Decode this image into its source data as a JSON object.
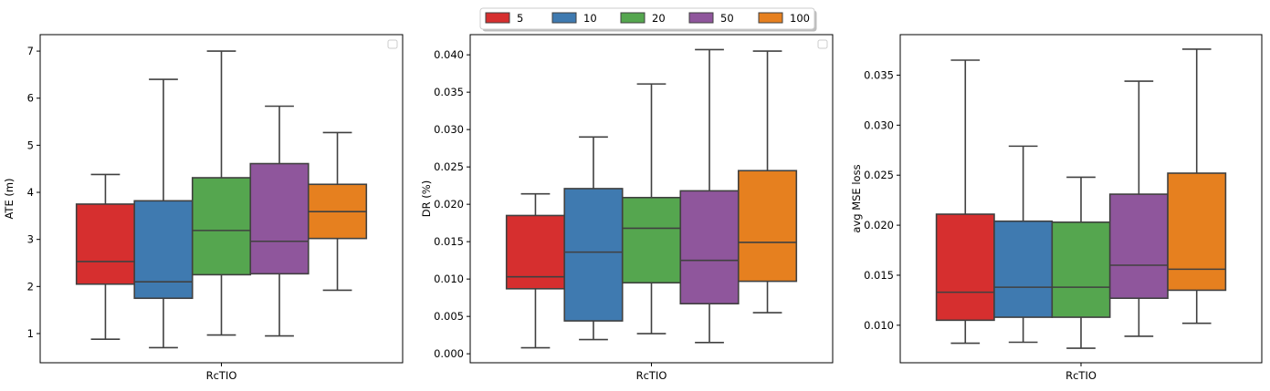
{
  "legend": {
    "entries": [
      {
        "label": "5",
        "color": "#d62f2f"
      },
      {
        "label": "10",
        "color": "#3f7ab0"
      },
      {
        "label": "20",
        "color": "#55a64f"
      },
      {
        "label": "50",
        "color": "#8f569c"
      },
      {
        "label": "100",
        "color": "#e6801f"
      }
    ]
  },
  "chart_data": [
    {
      "type": "box",
      "xlabel": "RcTIO",
      "ylabel": "ATE (m)",
      "ylim": [
        0.38,
        7.35
      ],
      "yticks": [
        1,
        2,
        3,
        4,
        5,
        6,
        7
      ],
      "ytick_labels": [
        "1",
        "2",
        "3",
        "4",
        "5",
        "6",
        "7"
      ],
      "categories": [
        "RcTIO"
      ],
      "series": [
        {
          "name": "5",
          "min": 0.88,
          "q1": 2.05,
          "median": 2.53,
          "q3": 3.75,
          "max": 4.38
        },
        {
          "name": "10",
          "min": 0.7,
          "q1": 1.75,
          "median": 2.1,
          "q3": 3.82,
          "max": 6.4
        },
        {
          "name": "20",
          "min": 0.97,
          "q1": 2.25,
          "median": 3.19,
          "q3": 4.31,
          "max": 7.0
        },
        {
          "name": "50",
          "min": 0.95,
          "q1": 2.27,
          "median": 2.96,
          "q3": 4.61,
          "max": 5.83
        },
        {
          "name": "100",
          "min": 1.92,
          "q1": 3.02,
          "median": 3.59,
          "q3": 4.17,
          "max": 5.27
        }
      ]
    },
    {
      "type": "box",
      "xlabel": "RcTIO",
      "ylabel": "DR (%)",
      "ylim": [
        -0.0012,
        0.0427
      ],
      "yticks": [
        0.0,
        0.005,
        0.01,
        0.015,
        0.02,
        0.025,
        0.03,
        0.035,
        0.04
      ],
      "ytick_labels": [
        "0.000",
        "0.005",
        "0.010",
        "0.015",
        "0.020",
        "0.025",
        "0.030",
        "0.035",
        "0.040"
      ],
      "categories": [
        "RcTIO"
      ],
      "series": [
        {
          "name": "5",
          "min": 0.0008,
          "q1": 0.0087,
          "median": 0.0103,
          "q3": 0.0185,
          "max": 0.0214
        },
        {
          "name": "10",
          "min": 0.0019,
          "q1": 0.0044,
          "median": 0.0136,
          "q3": 0.0221,
          "max": 0.029
        },
        {
          "name": "20",
          "min": 0.0027,
          "q1": 0.0095,
          "median": 0.0168,
          "q3": 0.0209,
          "max": 0.0361
        },
        {
          "name": "50",
          "min": 0.0015,
          "q1": 0.0067,
          "median": 0.0125,
          "q3": 0.0218,
          "max": 0.0407
        },
        {
          "name": "100",
          "min": 0.0055,
          "q1": 0.0097,
          "median": 0.0149,
          "q3": 0.0245,
          "max": 0.0405
        }
      ]
    },
    {
      "type": "box",
      "xlabel": "RcTIO",
      "ylabel": "avg MSE loss",
      "ylim": [
        0.00625,
        0.03905
      ],
      "yticks": [
        0.01,
        0.015,
        0.02,
        0.025,
        0.03,
        0.035
      ],
      "ytick_labels": [
        "0.010",
        "0.015",
        "0.020",
        "0.025",
        "0.030",
        "0.035"
      ],
      "categories": [
        "RcTIO"
      ],
      "series": [
        {
          "name": "5",
          "min": 0.0082,
          "q1": 0.0105,
          "median": 0.0133,
          "q3": 0.0211,
          "max": 0.0365
        },
        {
          "name": "10",
          "min": 0.0083,
          "q1": 0.0108,
          "median": 0.0138,
          "q3": 0.0204,
          "max": 0.0279
        },
        {
          "name": "20",
          "min": 0.0077,
          "q1": 0.0108,
          "median": 0.0138,
          "q3": 0.0203,
          "max": 0.0248
        },
        {
          "name": "50",
          "min": 0.0089,
          "q1": 0.0127,
          "median": 0.016,
          "q3": 0.0231,
          "max": 0.0344
        },
        {
          "name": "100",
          "min": 0.0102,
          "q1": 0.0135,
          "median": 0.0156,
          "q3": 0.0252,
          "max": 0.0376
        }
      ]
    }
  ]
}
